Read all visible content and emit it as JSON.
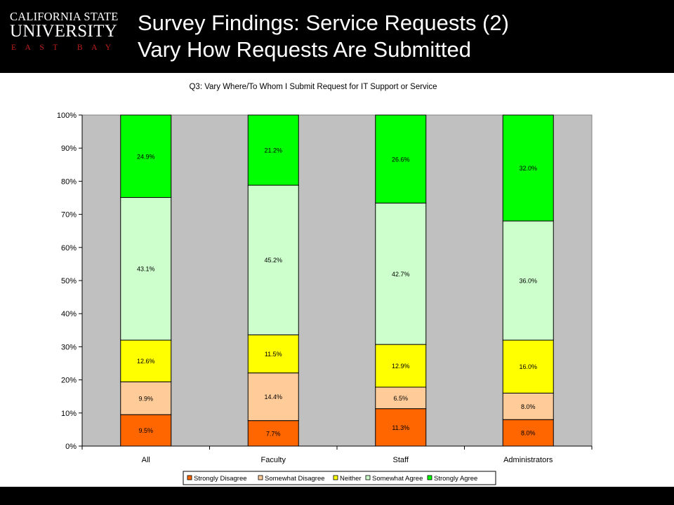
{
  "header": {
    "logo_line1": "CALIFORNIA STATE",
    "logo_line2": "UNIVERSITY",
    "logo_line3": "EAST BAY",
    "title_line1": "Survey Findings: Service Requests (2)",
    "title_line2": "Vary How Requests Are Submitted"
  },
  "colors": {
    "header_bg": "#000000",
    "plot_bg": "#c0c0c0",
    "logo_accent": "#c21f1f"
  },
  "chart_data": {
    "type": "bar",
    "stacked": true,
    "percent_stacked": true,
    "title": "Q3: Vary Where/To Whom I Submit Request for IT Support or Service",
    "xlabel": "",
    "ylabel": "",
    "categories": [
      "All",
      "Faculty",
      "Staff",
      "Administrators"
    ],
    "ylim": [
      0,
      100
    ],
    "yticks": [
      "0%",
      "10%",
      "20%",
      "30%",
      "40%",
      "50%",
      "60%",
      "70%",
      "80%",
      "90%",
      "100%"
    ],
    "grid": false,
    "legend_position": "bottom",
    "series": [
      {
        "name": "Strongly Disagree",
        "color": "#ff6600",
        "values": [
          9.5,
          7.7,
          11.3,
          8.0
        ],
        "labels": [
          "9.5%",
          "7.7%",
          "11.3%",
          "8.0%"
        ]
      },
      {
        "name": "Somewhat Disagree",
        "color": "#ffcc99",
        "values": [
          9.9,
          14.4,
          6.5,
          8.0
        ],
        "labels": [
          "9.9%",
          "14.4%",
          "6.5%",
          "8.0%"
        ]
      },
      {
        "name": "Neither",
        "color": "#ffff00",
        "values": [
          12.6,
          11.5,
          12.9,
          16.0
        ],
        "labels": [
          "12.6%",
          "11.5%",
          "12.9%",
          "16.0%"
        ]
      },
      {
        "name": "Somewhat Agree",
        "color": "#ccffcc",
        "values": [
          43.1,
          45.2,
          42.7,
          36.0
        ],
        "labels": [
          "43.1%",
          "45.2%",
          "42.7%",
          "36.0%"
        ]
      },
      {
        "name": "Strongly Agree",
        "color": "#00ff00",
        "values": [
          24.9,
          21.2,
          26.6,
          32.0
        ],
        "labels": [
          "24.9%",
          "21.2%",
          "26.6%",
          "32.0%"
        ]
      }
    ]
  }
}
